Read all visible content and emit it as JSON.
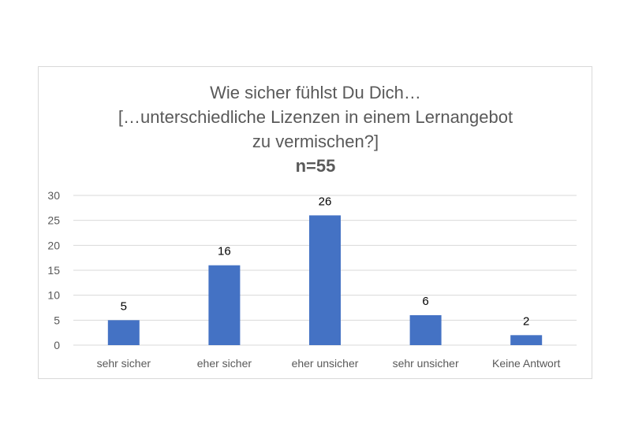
{
  "chart_data": {
    "type": "bar",
    "title_lines": [
      "Wie sicher fühlst Du Dich…",
      "[…unterschiedliche Lizenzen in einem Lernangebot",
      "zu vermischen?]"
    ],
    "subtitle": "n=55",
    "categories": [
      "sehr sicher",
      "eher sicher",
      "eher unsicher",
      "sehr unsicher",
      "Keine Antwort"
    ],
    "values": [
      5,
      16,
      26,
      6,
      2
    ],
    "data_labels": [
      "5",
      "16",
      "26",
      "6",
      "2"
    ],
    "ylim": [
      0,
      30
    ],
    "yticks": [
      0,
      5,
      10,
      15,
      20,
      25,
      30
    ],
    "ytick_labels": [
      "0",
      "5",
      "10",
      "15",
      "20",
      "25",
      "30"
    ],
    "xlabel": "",
    "ylabel": "",
    "grid": true,
    "legend": "none",
    "bar_color": "#4472c4",
    "grid_color": "#d9d9d9",
    "text_color": "#595959"
  }
}
